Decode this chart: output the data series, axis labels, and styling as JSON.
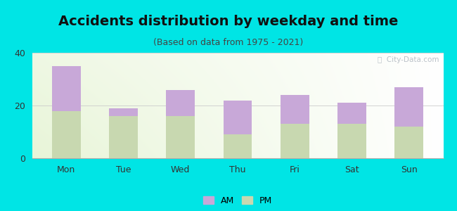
{
  "title": "Accidents distribution by weekday and time",
  "subtitle": "(Based on data from 1975 - 2021)",
  "categories": [
    "Mon",
    "Tue",
    "Wed",
    "Thu",
    "Fri",
    "Sat",
    "Sun"
  ],
  "pm_values": [
    18,
    16,
    16,
    9,
    13,
    13,
    12
  ],
  "am_values": [
    17,
    3,
    10,
    13,
    11,
    8,
    15
  ],
  "am_color": "#c8a8d8",
  "pm_color": "#c8d8b0",
  "ylim": [
    0,
    40
  ],
  "yticks": [
    0,
    20,
    40
  ],
  "background_color": "#00e5e5",
  "watermark": "ⓘ  City-Data.com",
  "bar_width": 0.5,
  "title_fontsize": 14,
  "subtitle_fontsize": 9,
  "legend_fontsize": 9,
  "tick_fontsize": 9
}
